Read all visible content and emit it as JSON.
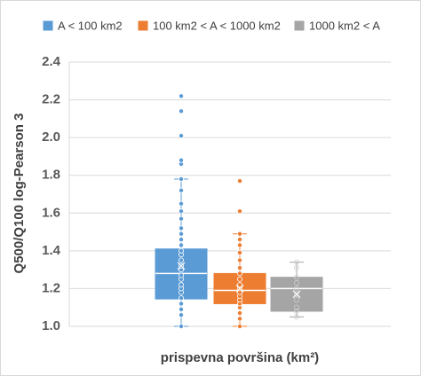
{
  "chart_data": {
    "type": "box",
    "y_label": "Q500/Q100 log-Pearson 3",
    "x_label": "prispevna površina (km²)",
    "ylim": [
      1.0,
      2.4
    ],
    "yticks": [
      {
        "value": 1.0,
        "label": "1.0"
      },
      1.2,
      1.4,
      1.6,
      1.8,
      {
        "value": 2.0,
        "label": "2.0"
      },
      2.2,
      2.4
    ],
    "grid": true,
    "legend": "top",
    "series": [
      {
        "name": "A < 100 km2",
        "color": "#5b9bd5",
        "min": 1.0,
        "q1": 1.145,
        "median": 1.28,
        "q3": 1.41,
        "max": 1.78,
        "mean": 1.32,
        "points": [
          1.0,
          1.06,
          1.09,
          1.12,
          1.15,
          1.18,
          1.2,
          1.22,
          1.25,
          1.27,
          1.3,
          1.32,
          1.35,
          1.38,
          1.4,
          1.43,
          1.46,
          1.49,
          1.52,
          1.57,
          1.61,
          1.65,
          1.72,
          1.78,
          1.86,
          1.88,
          2.01,
          2.14,
          2.22
        ]
      },
      {
        "name": "100 km2 < A < 1000 km2",
        "color": "#ed7d31",
        "min": 1.0,
        "q1": 1.12,
        "median": 1.19,
        "q3": 1.28,
        "max": 1.49,
        "mean": 1.2,
        "points": [
          1.0,
          1.04,
          1.07,
          1.1,
          1.12,
          1.14,
          1.16,
          1.18,
          1.2,
          1.22,
          1.25,
          1.28,
          1.31,
          1.35,
          1.39,
          1.43,
          1.46,
          1.49,
          1.61,
          1.77
        ]
      },
      {
        "name": "1000 km2 < A",
        "color": "#a5a5a5",
        "min": 1.05,
        "q1": 1.08,
        "median": 1.2,
        "q3": 1.26,
        "max": 1.34,
        "mean": 1.17,
        "points": [
          1.05,
          1.08,
          1.1,
          1.14,
          1.17,
          1.2,
          1.23,
          1.26,
          1.31,
          1.34
        ]
      }
    ]
  }
}
